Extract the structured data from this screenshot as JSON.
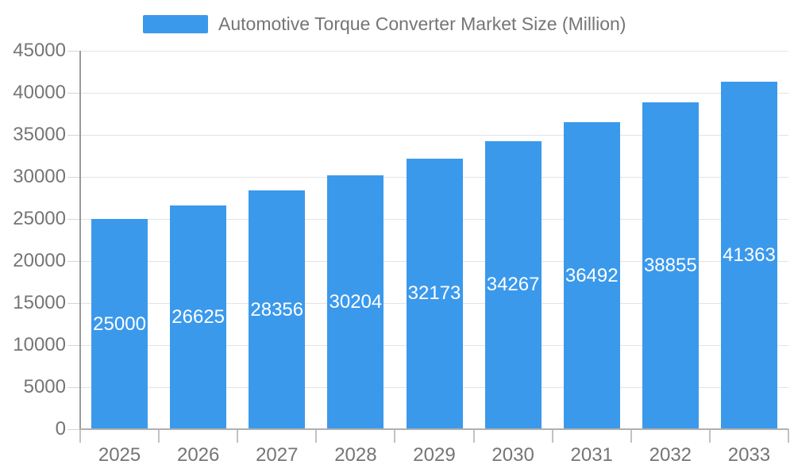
{
  "legend": {
    "label": "Automotive Torque Converter Market Size (Million)"
  },
  "chart_data": {
    "type": "bar",
    "title": "Automotive Torque Converter Market Size (Million)",
    "categories": [
      "2025",
      "2026",
      "2027",
      "2028",
      "2029",
      "2030",
      "2031",
      "2032",
      "2033"
    ],
    "values": [
      25000,
      26625,
      28356,
      30204,
      32173,
      34267,
      36492,
      38855,
      41363
    ],
    "xlabel": "",
    "ylabel": "",
    "ylim": [
      0,
      45000
    ],
    "ytick_step": 5000,
    "ytick_labels": [
      "0",
      "5000",
      "10000",
      "15000",
      "20000",
      "25000",
      "30000",
      "35000",
      "40000",
      "45000"
    ],
    "grid": true,
    "legend_position": "top-center",
    "value_labels": "inside-center"
  },
  "colors": {
    "bar": "#3b99ec",
    "bar_label": "#ffffff",
    "axis_text": "#757575",
    "grid_line": "#e3e3e3",
    "y_tick_line": "#d6d6d6",
    "x_tick_line": "#c2c2c2",
    "y_axis_line": "#9a9a9a",
    "x_axis_line": "#b0b0b0",
    "background": "#ffffff"
  }
}
